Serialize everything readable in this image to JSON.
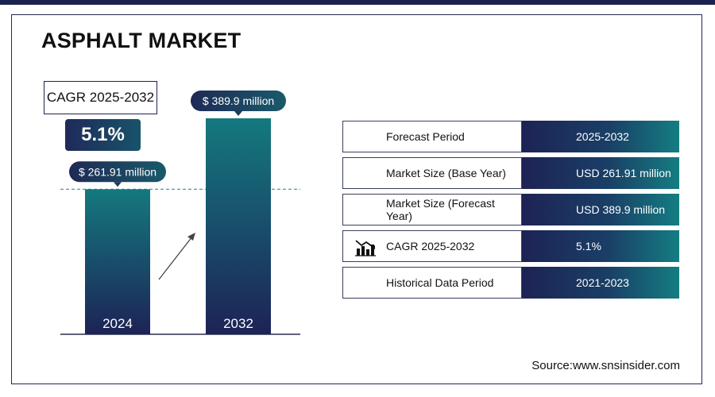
{
  "title": "ASPHALT MARKET",
  "cagr_label": "CAGR 2025-2032",
  "cagr_value": "5.1%",
  "chart_data": {
    "type": "bar",
    "categories": [
      "2024",
      "2032"
    ],
    "values": [
      261.91,
      389.9
    ],
    "value_labels": [
      "$  261.91 million",
      "$  389.9 million"
    ],
    "unit": "USD million",
    "bar_color": "#1a5a72",
    "ylim": [
      0,
      389.9
    ]
  },
  "table": {
    "rows": [
      {
        "label": "Forecast Period",
        "value": "2025-2032",
        "icon": ""
      },
      {
        "label": "Market Size (Base Year)",
        "value": "USD  261.91 million",
        "icon": ""
      },
      {
        "label": "Market Size (Forecast Year)",
        "value": "USD 389.9 million",
        "icon": ""
      },
      {
        "label": "CAGR 2025-2032",
        "value": "5.1%",
        "icon": "growth-chart-icon"
      },
      {
        "label": "Historical Data Period",
        "value": "2021-2023",
        "icon": ""
      }
    ]
  },
  "source": "Source:www.snsinsider.com",
  "colors": {
    "navy": "#1d2354",
    "teal": "#147d82",
    "dashed_line": "#3f8f95"
  }
}
